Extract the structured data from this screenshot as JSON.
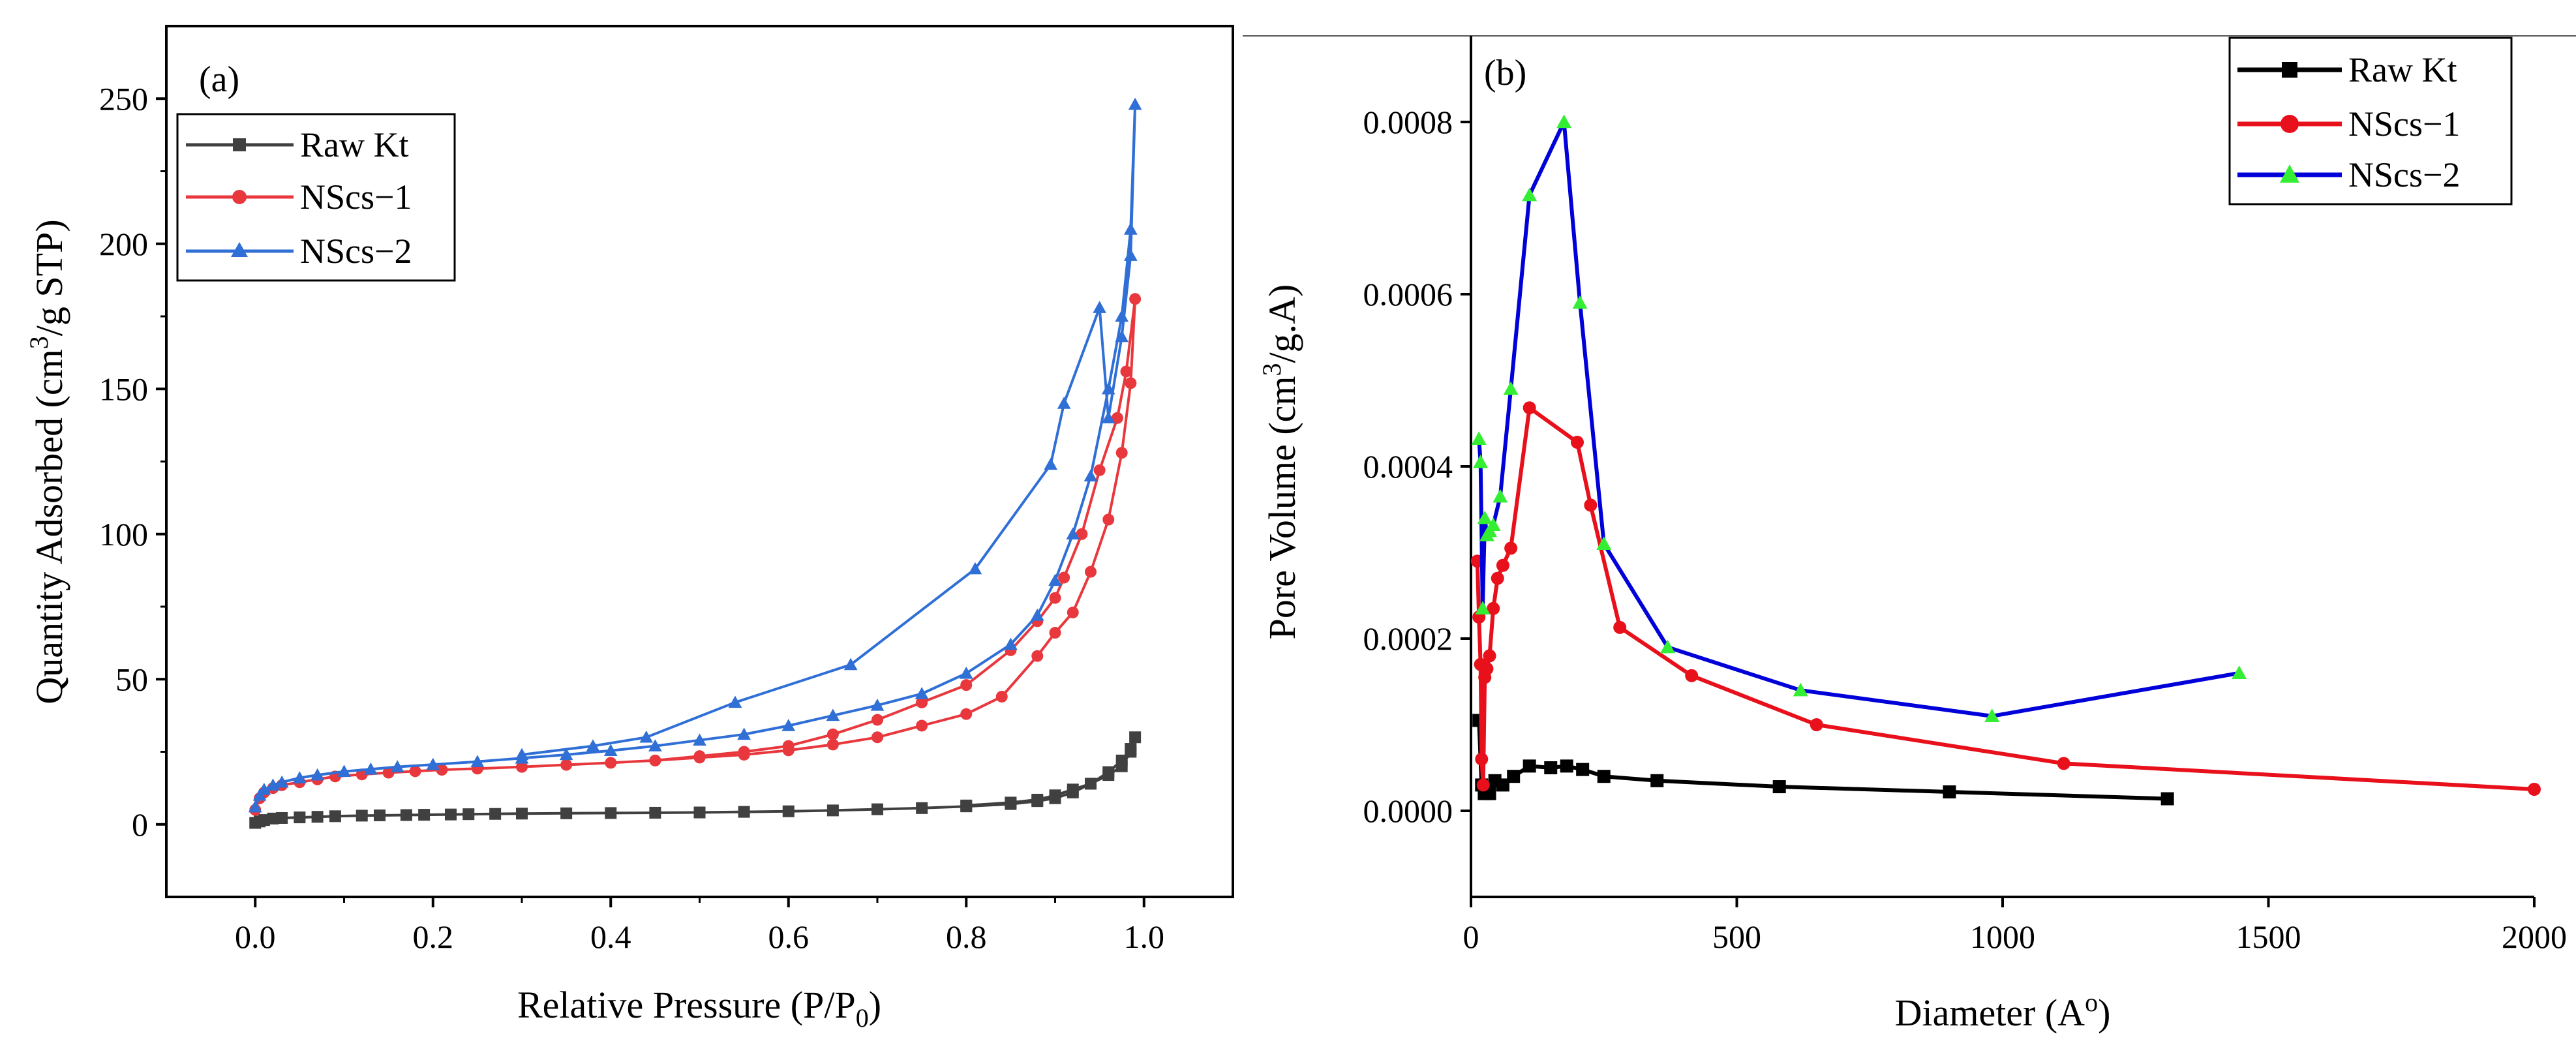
{
  "chart_data": [
    {
      "type": "line",
      "panel_label": "(a)",
      "xlabel": "Relative Pressure (P/P",
      "xlabel_sub": "0",
      "xlabel_end": ")",
      "ylabel": "Quantity Adsorbed (cm",
      "ylabel_sup": "3",
      "ylabel_end": "/g STP)",
      "xlim": [
        -0.1,
        1.1
      ],
      "ylim": [
        -25,
        275
      ],
      "xticks": [
        0.0,
        0.2,
        0.4,
        0.6,
        0.8,
        1.0
      ],
      "xtick_labels": [
        "0.0",
        "0.2",
        "0.4",
        "0.6",
        "0.8",
        "1.0"
      ],
      "yticks": [
        0,
        50,
        100,
        150,
        200,
        250
      ],
      "ytick_labels": [
        "0",
        "50",
        "100",
        "150",
        "200",
        "250"
      ],
      "legend": "top-left",
      "series": [
        {
          "name": "Raw Kt",
          "color": "#404040",
          "marker": "square",
          "x": [
            0.0,
            0.005,
            0.01,
            0.02,
            0.03,
            0.05,
            0.07,
            0.09,
            0.12,
            0.14,
            0.17,
            0.19,
            0.22,
            0.24,
            0.27,
            0.3,
            0.35,
            0.4,
            0.45,
            0.5,
            0.55,
            0.6,
            0.65,
            0.7,
            0.75,
            0.8,
            0.85,
            0.88,
            0.9,
            0.92,
            0.94,
            0.96,
            0.975,
            0.985,
            0.99,
            0.985,
            0.975,
            0.96,
            0.94,
            0.92,
            0.9,
            0.88,
            0.85,
            0.8
          ],
          "y": [
            0.5,
            1.0,
            1.5,
            2.0,
            2.2,
            2.4,
            2.6,
            2.8,
            3.0,
            3.1,
            3.2,
            3.3,
            3.4,
            3.5,
            3.6,
            3.7,
            3.8,
            3.9,
            4.0,
            4.1,
            4.3,
            4.5,
            4.8,
            5.2,
            5.6,
            6.2,
            7.0,
            8.0,
            9.0,
            11.0,
            14.0,
            18.0,
            22.0,
            26.0,
            30.0,
            25.0,
            20.0,
            17.0,
            14.0,
            12.0,
            10.0,
            8.5,
            7.5,
            6.5
          ]
        },
        {
          "name": "NScs−1",
          "color": "#e8383d",
          "marker": "circle",
          "x": [
            0.0,
            0.005,
            0.01,
            0.02,
            0.03,
            0.05,
            0.07,
            0.09,
            0.12,
            0.15,
            0.18,
            0.21,
            0.25,
            0.3,
            0.35,
            0.4,
            0.45,
            0.5,
            0.55,
            0.6,
            0.65,
            0.7,
            0.75,
            0.8,
            0.84,
            0.88,
            0.9,
            0.92,
            0.94,
            0.96,
            0.975,
            0.985,
            0.99,
            0.98,
            0.97,
            0.95,
            0.93,
            0.91,
            0.9,
            0.88,
            0.85,
            0.8,
            0.75,
            0.7,
            0.65,
            0.6,
            0.55,
            0.5,
            0.45
          ],
          "y": [
            5,
            9,
            11,
            12.5,
            13.5,
            14.5,
            15.5,
            16.5,
            17.2,
            17.8,
            18.3,
            18.8,
            19.2,
            19.8,
            20.5,
            21.2,
            22.0,
            23.0,
            24.0,
            25.5,
            27.5,
            30.0,
            34.0,
            38.0,
            44.0,
            58.0,
            66.0,
            73.0,
            87.0,
            105.0,
            128.0,
            152.0,
            181.0,
            156.0,
            140.0,
            122.0,
            100.0,
            85.0,
            78.0,
            70.0,
            60.0,
            48.0,
            42.0,
            36.0,
            31.0,
            27.0,
            25.0,
            23.5,
            22.0
          ]
        },
        {
          "name": "NScs−2",
          "color": "#2f6fd6",
          "marker": "triangle",
          "x": [
            0.0,
            0.005,
            0.01,
            0.02,
            0.03,
            0.05,
            0.07,
            0.1,
            0.13,
            0.16,
            0.2,
            0.25,
            0.3,
            0.35,
            0.4,
            0.45,
            0.5,
            0.55,
            0.6,
            0.65,
            0.7,
            0.75,
            0.8,
            0.85,
            0.88,
            0.9,
            0.92,
            0.94,
            0.96,
            0.975,
            0.985,
            0.99,
            0.985,
            0.975,
            0.96,
            0.95,
            0.91,
            0.895,
            0.81,
            0.67,
            0.54,
            0.44,
            0.38,
            0.3
          ],
          "y": [
            6,
            10,
            12,
            13.5,
            14.5,
            16,
            17,
            18.2,
            19,
            19.8,
            20.6,
            21.6,
            22.8,
            24.0,
            25.4,
            27.0,
            29.0,
            31.0,
            34.0,
            37.5,
            41.0,
            45.0,
            52.0,
            62.0,
            72.0,
            84.0,
            100.0,
            120.0,
            150.0,
            175.0,
            205.0,
            248.0,
            196.0,
            168.0,
            140.0,
            178.0,
            145.0,
            124.0,
            88.0,
            55.0,
            42.0,
            30.0,
            27.0,
            24.0
          ]
        }
      ]
    },
    {
      "type": "line",
      "panel_label": "(b)",
      "xlabel": "Diameter (A",
      "xlabel_sup": "o",
      "xlabel_end": ")",
      "ylabel": "Pore Volume (cm",
      "ylabel_sup": "3",
      "ylabel_end": "/g.A)",
      "xlim": [
        0,
        2000
      ],
      "ylim": [
        -0.0001,
        0.0009
      ],
      "xticks": [
        0,
        500,
        1000,
        1500,
        2000
      ],
      "xtick_labels": [
        "0",
        "500",
        "1000",
        "1500",
        "2000"
      ],
      "yticks": [
        0.0,
        0.0002,
        0.0004,
        0.0006,
        0.0008
      ],
      "ytick_labels": [
        "0.0000",
        "0.0002",
        "0.0004",
        "0.0006",
        "0.0008"
      ],
      "legend": "top-right",
      "series": [
        {
          "name": "Raw Kt",
          "color": "#000000",
          "marker": "square",
          "x": [
            15,
            20,
            25,
            30,
            35,
            45,
            60,
            80,
            110,
            150,
            180,
            210,
            250,
            350,
            580,
            900,
            1310
          ],
          "y": [
            0.000105,
            3e-05,
            2e-05,
            2.5e-05,
            2e-05,
            3.5e-05,
            3e-05,
            4e-05,
            5.2e-05,
            5e-05,
            5.2e-05,
            4.8e-05,
            4e-05,
            3.5e-05,
            2.8e-05,
            2.2e-05,
            1.4e-05
          ]
        },
        {
          "name": "NScs−1",
          "color": "#e8101b",
          "marker": "circle",
          "x": [
            12,
            15,
            18,
            20,
            23,
            26,
            30,
            35,
            42,
            50,
            60,
            75,
            110,
            200,
            225,
            280,
            415,
            650,
            1115,
            2000
          ],
          "y": [
            0.00029,
            0.000225,
            0.00017,
            6e-05,
            3e-05,
            0.000155,
            0.000165,
            0.00018,
            0.000235,
            0.00027,
            0.000285,
            0.000305,
            0.000468,
            0.000428,
            0.000355,
            0.000213,
            0.000157,
            0.0001,
            5.5e-05,
            2.5e-05
          ]
        },
        {
          "name": "NScs−2",
          "color": "#0000d9",
          "marker": "triangle",
          "x": [
            15,
            18,
            22,
            26,
            30,
            35,
            42,
            55,
            75,
            110,
            175,
            205,
            250,
            370,
            620,
            980,
            1445
          ],
          "y": [
            0.000432,
            0.000405,
            0.000235,
            0.00034,
            0.00032,
            0.000325,
            0.000332,
            0.000365,
            0.00049,
            0.000715,
            0.0008,
            0.00059,
            0.00031,
            0.00019,
            0.00014,
            0.00011,
            0.00016
          ]
        }
      ],
      "marker_fill": "#33ee33"
    }
  ]
}
